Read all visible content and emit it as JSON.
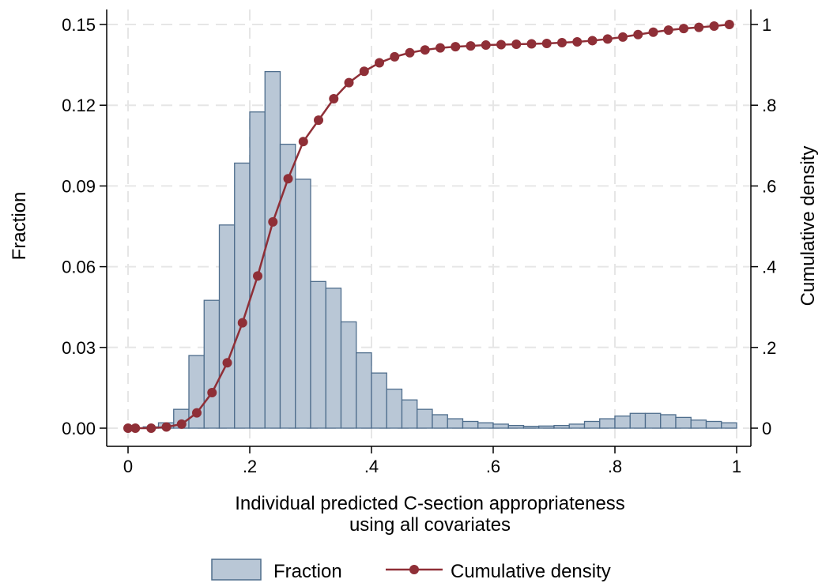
{
  "chart_data": {
    "type": "bar",
    "xlabel_lines": [
      "Individual predicted C-section appropriateness",
      "using all covariates"
    ],
    "ylabel_left": "Fraction",
    "ylabel_right": "Cumulative density",
    "xlim": [
      0,
      1
    ],
    "ylim_left": [
      0,
      0.15
    ],
    "ylim_right": [
      0,
      1
    ],
    "x_ticks": [
      "0",
      ".2",
      ".4",
      ".6",
      ".8",
      "1"
    ],
    "y_ticks_left": [
      "0.00",
      "0.03",
      "0.06",
      "0.09",
      "0.12",
      "0.15"
    ],
    "y_ticks_right": [
      "0",
      ".2",
      ".4",
      ".6",
      ".8",
      "1"
    ],
    "grid": true,
    "legend": {
      "placement": "bottom",
      "items": [
        "Fraction",
        "Cumulative density"
      ]
    },
    "colors": {
      "bar_fill": "#b9c7d6",
      "bar_stroke": "#4e6d8c",
      "line": "#8f2f37"
    },
    "histogram": {
      "name": "Fraction",
      "bin_width": 0.025,
      "bin_starts": [
        0.0,
        0.025,
        0.05,
        0.075,
        0.1,
        0.125,
        0.15,
        0.175,
        0.2,
        0.225,
        0.25,
        0.275,
        0.3,
        0.325,
        0.35,
        0.375,
        0.4,
        0.425,
        0.45,
        0.475,
        0.5,
        0.525,
        0.55,
        0.575,
        0.6,
        0.625,
        0.65,
        0.675,
        0.7,
        0.725,
        0.75,
        0.775,
        0.8,
        0.825,
        0.85,
        0.875,
        0.9,
        0.925,
        0.95,
        0.975
      ],
      "values": [
        0.0,
        0.0005,
        0.002,
        0.007,
        0.027,
        0.0475,
        0.0755,
        0.0985,
        0.1175,
        0.1325,
        0.1055,
        0.0925,
        0.0545,
        0.052,
        0.0395,
        0.028,
        0.0205,
        0.0145,
        0.0105,
        0.007,
        0.005,
        0.0035,
        0.0025,
        0.002,
        0.0015,
        0.001,
        0.0007,
        0.0008,
        0.001,
        0.0015,
        0.0025,
        0.0035,
        0.0045,
        0.0055,
        0.0055,
        0.005,
        0.004,
        0.003,
        0.0025,
        0.002
      ]
    },
    "cumulative": {
      "name": "Cumulative density",
      "x": [
        0.0,
        0.012,
        0.038,
        0.063,
        0.088,
        0.113,
        0.138,
        0.163,
        0.188,
        0.213,
        0.238,
        0.263,
        0.288,
        0.313,
        0.338,
        0.363,
        0.388,
        0.413,
        0.438,
        0.463,
        0.488,
        0.513,
        0.538,
        0.563,
        0.588,
        0.613,
        0.638,
        0.663,
        0.688,
        0.713,
        0.738,
        0.763,
        0.788,
        0.813,
        0.838,
        0.863,
        0.888,
        0.913,
        0.938,
        0.963,
        0.988
      ],
      "y": [
        0.0,
        0.0,
        0.0,
        0.003,
        0.01,
        0.038,
        0.088,
        0.162,
        0.261,
        0.377,
        0.511,
        0.618,
        0.71,
        0.763,
        0.816,
        0.856,
        0.884,
        0.905,
        0.92,
        0.93,
        0.937,
        0.942,
        0.945,
        0.947,
        0.949,
        0.95,
        0.951,
        0.952,
        0.953,
        0.955,
        0.957,
        0.96,
        0.964,
        0.969,
        0.975,
        0.981,
        0.986,
        0.99,
        0.993,
        0.996,
        1.0
      ]
    }
  }
}
